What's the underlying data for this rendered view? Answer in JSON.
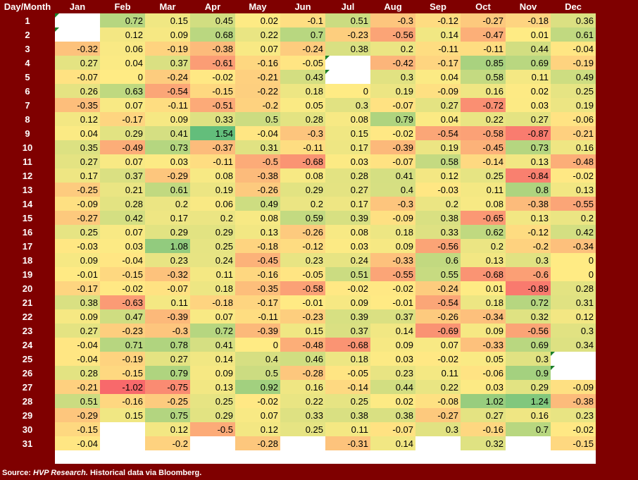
{
  "chart_data": {
    "type": "heatmap",
    "corner_label": "Day/Month",
    "columns": [
      "Jan",
      "Feb",
      "Mar",
      "Apr",
      "May",
      "Jun",
      "Jul",
      "Aug",
      "Sep",
      "Oct",
      "Nov",
      "Dec"
    ],
    "rows": [
      "1",
      "2",
      "3",
      "4",
      "5",
      "6",
      "7",
      "8",
      "9",
      "10",
      "11",
      "12",
      "13",
      "14",
      "15",
      "16",
      "17",
      "18",
      "19",
      "20",
      "21",
      "22",
      "23",
      "24",
      "25",
      "26",
      "27",
      "28",
      "29",
      "30",
      "31"
    ],
    "values": [
      [
        null,
        0.72,
        0.15,
        0.45,
        0.02,
        -0.1,
        0.51,
        -0.3,
        -0.12,
        -0.27,
        -0.18,
        0.36
      ],
      [
        null,
        0.12,
        0.09,
        0.68,
        0.22,
        0.7,
        -0.23,
        -0.56,
        0.14,
        -0.47,
        0.01,
        0.61
      ],
      [
        -0.32,
        0.06,
        -0.19,
        -0.38,
        0.07,
        -0.24,
        0.38,
        0.2,
        -0.11,
        -0.11,
        0.44,
        -0.04
      ],
      [
        0.27,
        0.04,
        0.37,
        -0.61,
        -0.16,
        -0.05,
        null,
        -0.42,
        -0.17,
        0.85,
        0.69,
        -0.19
      ],
      [
        -0.07,
        0,
        -0.24,
        -0.02,
        -0.21,
        0.43,
        null,
        0.3,
        0.04,
        0.58,
        0.11,
        0.49
      ],
      [
        0.26,
        0.63,
        -0.54,
        -0.15,
        -0.22,
        0.18,
        0,
        0.19,
        -0.09,
        0.16,
        0.02,
        0.25
      ],
      [
        -0.35,
        0.07,
        -0.11,
        -0.51,
        -0.2,
        0.05,
        0.3,
        -0.07,
        0.27,
        -0.72,
        0.03,
        0.19
      ],
      [
        0.12,
        -0.17,
        0.09,
        0.33,
        0.5,
        0.28,
        0.08,
        0.79,
        0.04,
        0.22,
        0.27,
        -0.06
      ],
      [
        0.04,
        0.29,
        0.41,
        1.54,
        -0.04,
        -0.3,
        0.15,
        -0.02,
        -0.54,
        -0.58,
        -0.87,
        -0.21
      ],
      [
        0.35,
        -0.49,
        0.73,
        -0.37,
        0.31,
        -0.11,
        0.17,
        -0.39,
        0.19,
        -0.45,
        0.73,
        0.16
      ],
      [
        0.27,
        0.07,
        0.03,
        -0.11,
        -0.5,
        -0.68,
        0.03,
        -0.07,
        0.58,
        -0.14,
        0.13,
        -0.48
      ],
      [
        0.17,
        0.37,
        -0.29,
        0.08,
        -0.38,
        0.08,
        0.28,
        0.41,
        0.12,
        0.25,
        -0.84,
        -0.02
      ],
      [
        -0.25,
        0.21,
        0.61,
        0.19,
        -0.26,
        0.29,
        0.27,
        0.4,
        -0.03,
        0.11,
        0.8,
        0.13
      ],
      [
        -0.09,
        0.28,
        0.2,
        0.06,
        0.49,
        0.2,
        0.17,
        -0.3,
        0.2,
        0.08,
        -0.38,
        -0.55
      ],
      [
        -0.27,
        0.42,
        0.17,
        0.2,
        0.08,
        0.59,
        0.39,
        -0.09,
        0.38,
        -0.65,
        0.13,
        0.2
      ],
      [
        0.25,
        0.07,
        0.29,
        0.29,
        0.13,
        -0.26,
        0.08,
        0.18,
        0.33,
        0.62,
        -0.12,
        0.42
      ],
      [
        -0.03,
        0.03,
        1.08,
        0.25,
        -0.18,
        -0.12,
        0.03,
        0.09,
        -0.56,
        0.2,
        -0.2,
        -0.34
      ],
      [
        0.09,
        -0.04,
        0.23,
        0.24,
        -0.45,
        0.23,
        0.24,
        -0.33,
        0.6,
        0.13,
        0.3,
        0
      ],
      [
        -0.01,
        -0.15,
        -0.32,
        0.11,
        -0.16,
        -0.05,
        0.51,
        -0.55,
        0.55,
        -0.68,
        -0.6,
        0
      ],
      [
        -0.17,
        -0.02,
        -0.07,
        0.18,
        -0.35,
        -0.58,
        -0.02,
        -0.02,
        -0.24,
        0.01,
        -0.89,
        0.28
      ],
      [
        0.38,
        -0.63,
        0.11,
        -0.18,
        -0.17,
        -0.01,
        0.09,
        -0.01,
        -0.54,
        0.18,
        0.72,
        0.31
      ],
      [
        0.09,
        0.47,
        -0.39,
        0.07,
        -0.11,
        -0.23,
        0.39,
        0.37,
        -0.26,
        -0.34,
        0.32,
        0.12
      ],
      [
        0.27,
        -0.23,
        -0.3,
        0.72,
        -0.39,
        0.15,
        0.37,
        0.14,
        -0.69,
        0.09,
        -0.56,
        0.3
      ],
      [
        -0.04,
        0.71,
        0.78,
        0.41,
        0,
        -0.48,
        -0.68,
        0.09,
        0.07,
        -0.33,
        0.69,
        0.34
      ],
      [
        -0.04,
        -0.19,
        0.27,
        0.14,
        0.4,
        0.46,
        0.18,
        0.03,
        -0.02,
        0.05,
        0.3,
        null
      ],
      [
        0.28,
        -0.15,
        0.79,
        0.09,
        0.5,
        -0.28,
        -0.05,
        0.23,
        0.11,
        -0.06,
        0.9,
        null
      ],
      [
        -0.21,
        -1.02,
        -0.75,
        0.13,
        0.92,
        0.16,
        -0.14,
        0.44,
        0.22,
        0.03,
        0.29,
        -0.09
      ],
      [
        0.51,
        -0.16,
        -0.25,
        0.25,
        -0.02,
        0.22,
        0.25,
        0.02,
        -0.08,
        1.02,
        1.24,
        -0.38
      ],
      [
        -0.29,
        0.15,
        0.75,
        0.29,
        0.07,
        0.33,
        0.38,
        0.38,
        -0.27,
        0.27,
        0.16,
        0.23
      ],
      [
        -0.15,
        null,
        0.12,
        -0.5,
        0.12,
        0.25,
        0.11,
        -0.07,
        0.3,
        -0.16,
        0.7,
        -0.02
      ],
      [
        -0.04,
        null,
        -0.2,
        null,
        -0.28,
        null,
        -0.31,
        0.14,
        null,
        0.32,
        null,
        -0.15
      ]
    ],
    "flagged_cells": [
      [
        0,
        0
      ],
      [
        1,
        0
      ],
      [
        3,
        6
      ],
      [
        4,
        6
      ],
      [
        24,
        11
      ],
      [
        25,
        11
      ]
    ],
    "color_scale": {
      "negative": "#f8696b",
      "mid": "#ffeb84",
      "positive": "#63be7b",
      "min": -1.02,
      "max": 1.54
    }
  },
  "footer": {
    "source_label": "Source:",
    "source_name": "HVP Research.",
    "source_note": "Historical data via Bloomberg."
  }
}
